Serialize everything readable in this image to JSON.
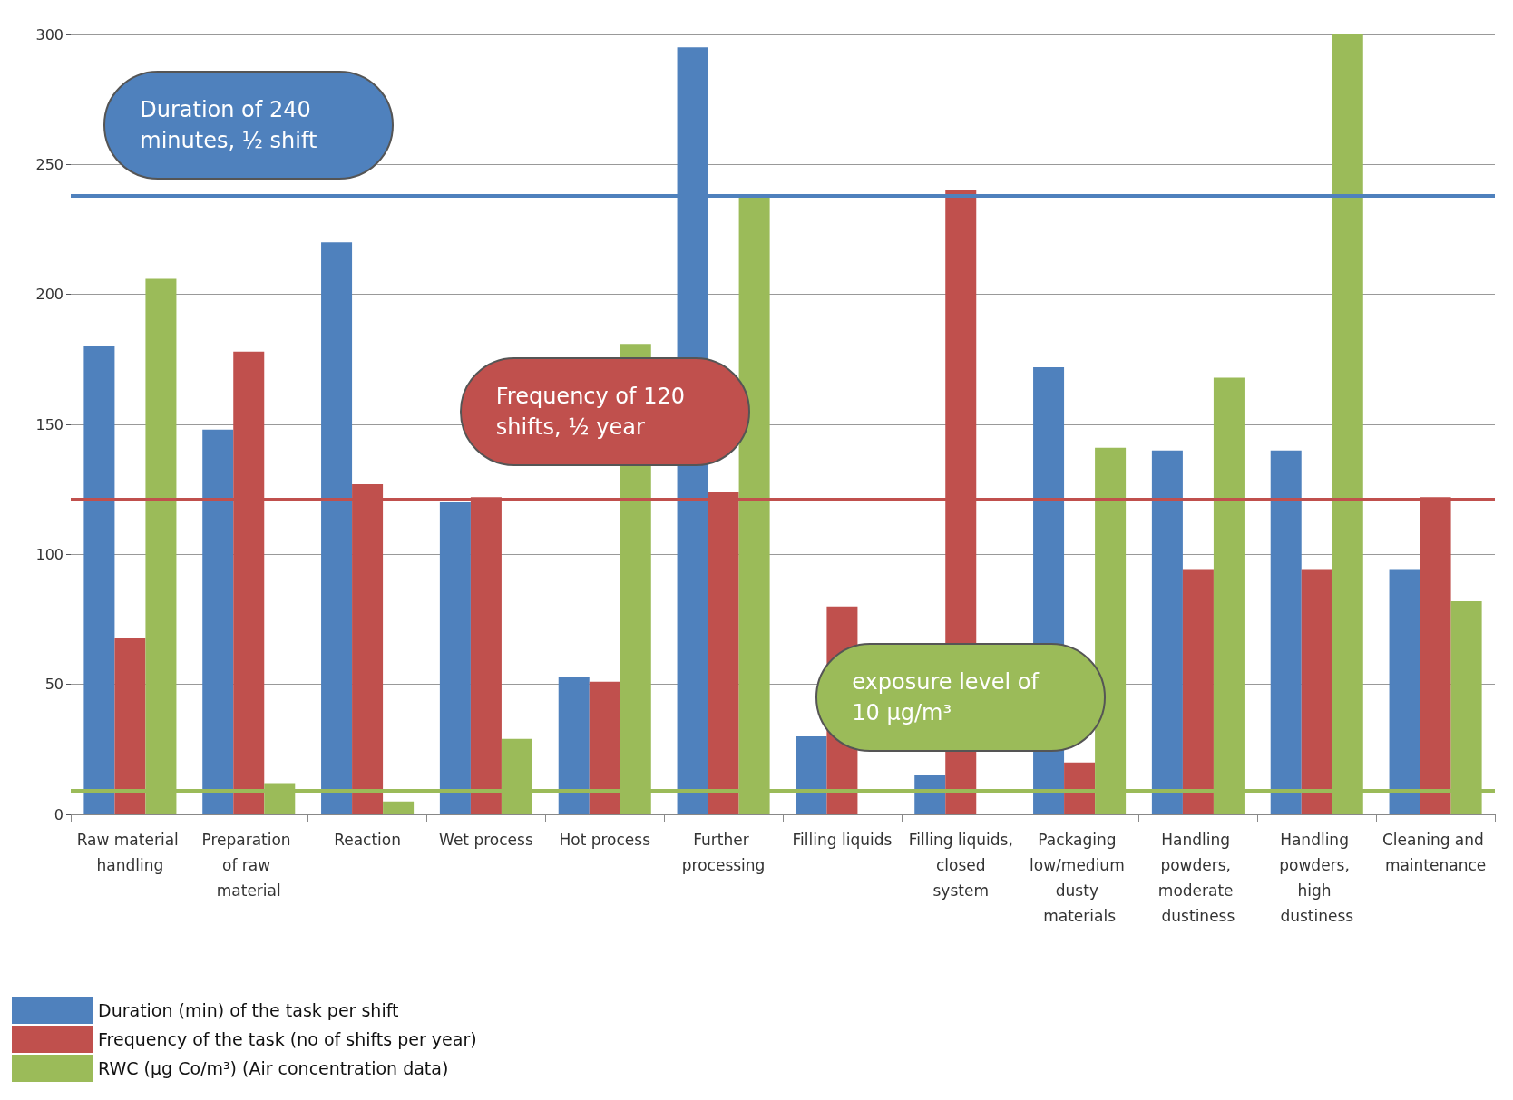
{
  "chart_data": {
    "type": "bar",
    "categories": [
      "Raw material handling",
      "Preparation of raw material",
      "Reaction",
      "Wet process",
      "Hot process",
      "Further processing",
      "Filling liquids",
      "Filling liquids, closed system",
      "Packaging low/medium dusty materials",
      "Handling powders, moderate dustiness",
      "Handling powders, high dustiness",
      "Cleaning and maintenance"
    ],
    "series": [
      {
        "name": "Duration (min) of the task per shift",
        "color": "#4f81bd",
        "values": [
          180,
          148,
          220,
          120,
          53,
          295,
          30,
          15,
          172,
          140,
          140,
          94
        ]
      },
      {
        "name": "Frequency of the task (no of shifts per year)",
        "color": "#c0504d",
        "values": [
          68,
          178,
          127,
          122,
          51,
          124,
          80,
          240,
          20,
          94,
          94,
          122
        ]
      },
      {
        "name": "RWC (µg Co/m³) (Air concentration data)",
        "color": "#9bbb59",
        "values": [
          206,
          12,
          5,
          29,
          181,
          238,
          0,
          0,
          141,
          168,
          300,
          82
        ]
      }
    ],
    "ylim": [
      0,
      300
    ],
    "yticks": [
      0,
      50,
      100,
      150,
      200,
      250,
      300
    ],
    "grid": "y",
    "legend": "bottom left",
    "ref_lines": [
      {
        "axis": "y",
        "value": 238,
        "color": "#4f81bd"
      },
      {
        "axis": "y",
        "value": 121,
        "color": "#c0504d"
      },
      {
        "axis": "y",
        "value": 9,
        "color": "#9bbb59"
      }
    ],
    "annotations": [
      "Duration of 240 minutes, ½ shift",
      "Frequency of 120 shifts, ½ year",
      "exposure level of 10 µg/m³"
    ]
  }
}
